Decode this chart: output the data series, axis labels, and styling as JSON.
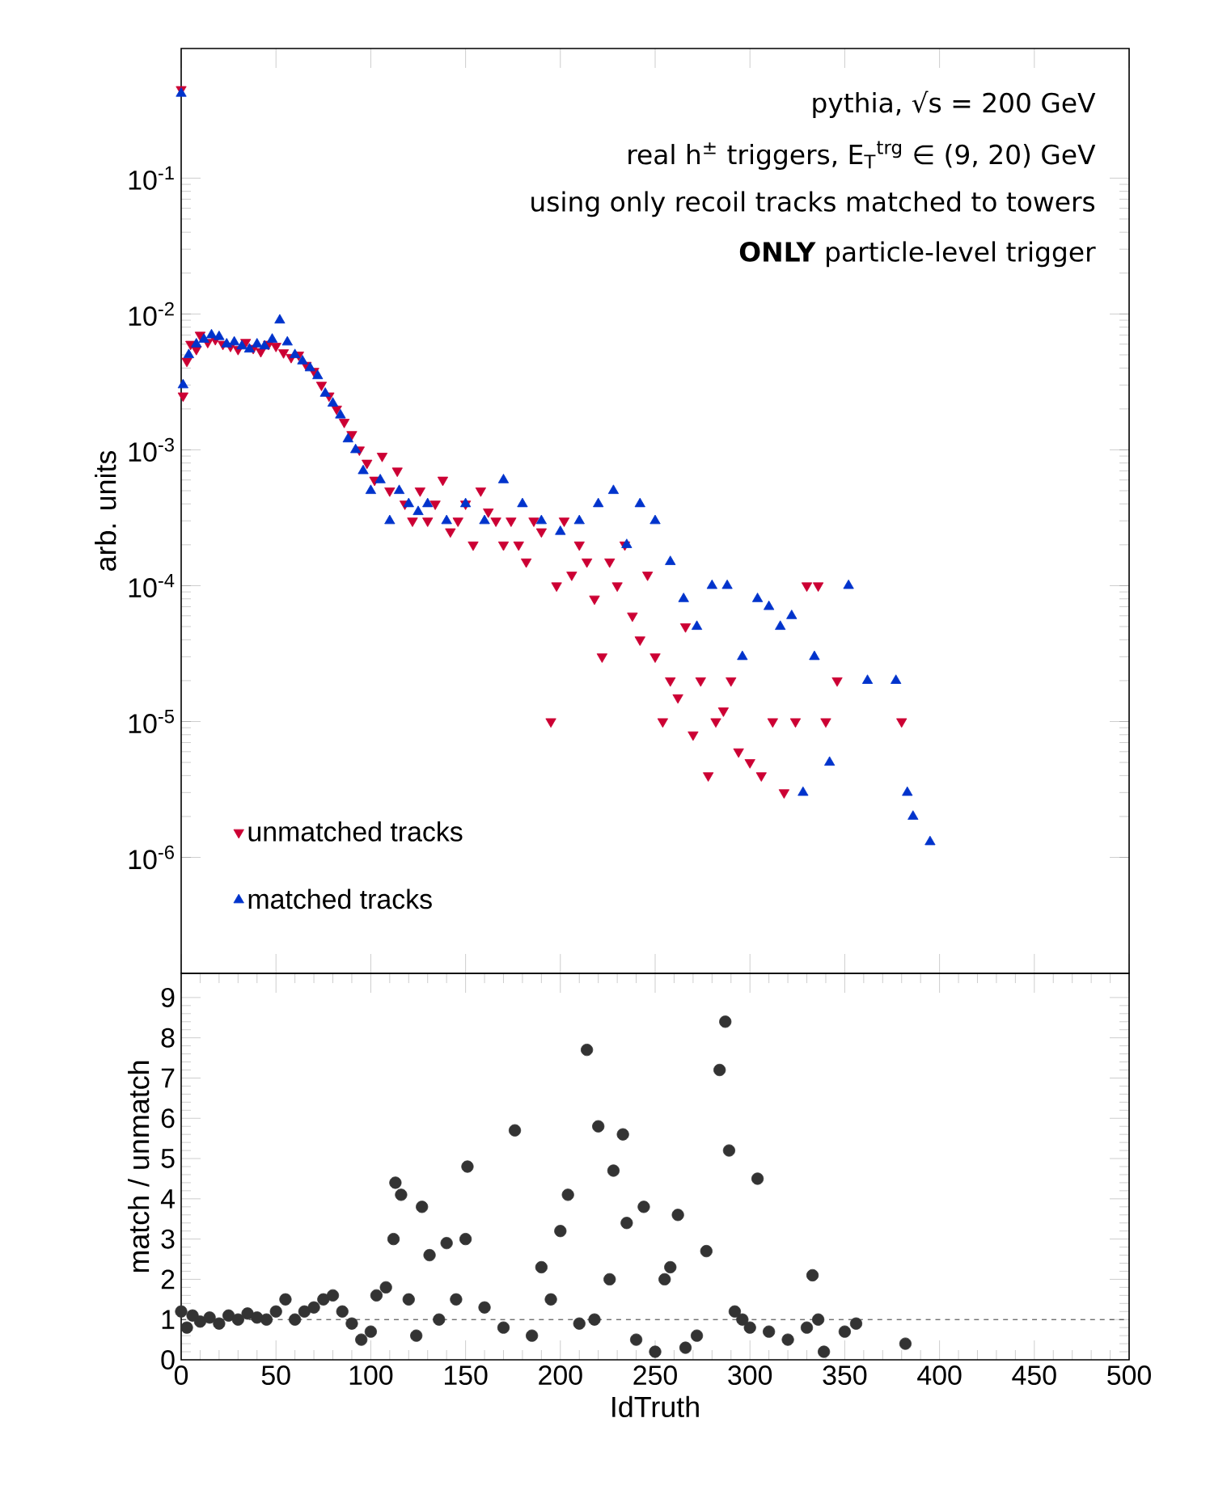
{
  "chart_data": [
    {
      "type": "scatter",
      "ylabel": "arb. units",
      "log": "y",
      "xlim": [
        0,
        500
      ],
      "xticks": [
        0,
        50,
        100,
        150,
        200,
        250,
        300,
        350,
        400,
        450,
        500
      ],
      "ylim": [
        1.4e-07,
        0.9
      ],
      "yticks": [
        {
          "value": 1e-06,
          "label": "10$^{-6}$"
        },
        {
          "value": 1e-05,
          "label": "10$^{-5}$"
        },
        {
          "value": 0.0001,
          "label": "10$^{-4}$"
        },
        {
          "value": 0.001,
          "label": "10$^{-3}$"
        },
        {
          "value": 0.01,
          "label": "10$^{-2}$"
        },
        {
          "value": 0.1,
          "label": "10$^{-1}$"
        }
      ],
      "tick_labels": "y",
      "legend": "bottom left",
      "annotations": [
        "pythia, √s = 200 GeV",
        "real h$^{±}$ triggers, E$_{T}$$^{trg}$ ∈ (9, 20) GeV",
        "using only recoil tracks matched to towers",
        "**ONLY** particle-level trigger"
      ],
      "series": [
        {
          "name": "unmatched tracks",
          "color": "#cc0033",
          "marker": "triangle_down",
          "x": [
            0,
            1,
            3,
            5,
            8,
            10,
            14,
            18,
            22,
            26,
            30,
            34,
            38,
            42,
            46,
            50,
            54,
            58,
            62,
            66,
            70,
            74,
            78,
            82,
            86,
            90,
            94,
            98,
            102,
            106,
            110,
            114,
            118,
            122,
            126,
            130,
            134,
            138,
            142,
            146,
            150,
            154,
            158,
            162,
            166,
            170,
            174,
            178,
            182,
            186,
            190,
            195,
            198,
            202,
            206,
            210,
            214,
            218,
            222,
            226,
            230,
            234,
            238,
            242,
            246,
            250,
            254,
            258,
            262,
            266,
            270,
            274,
            278,
            282,
            286,
            290,
            294,
            300,
            306,
            312,
            318,
            324,
            330,
            336,
            340,
            346,
            380
          ],
          "values": [
            0.45,
            0.0025,
            0.0045,
            0.006,
            0.0055,
            0.007,
            0.0062,
            0.0065,
            0.006,
            0.0058,
            0.0055,
            0.0062,
            0.0056,
            0.0053,
            0.006,
            0.0058,
            0.0052,
            0.0048,
            0.005,
            0.0042,
            0.0038,
            0.003,
            0.0025,
            0.002,
            0.0016,
            0.0013,
            0.001,
            0.0008,
            0.0006,
            0.0009,
            0.0005,
            0.0007,
            0.0004,
            0.0003,
            0.0005,
            0.0003,
            0.0004,
            0.0006,
            0.00025,
            0.0003,
            0.0004,
            0.0002,
            0.0005,
            0.00035,
            0.0003,
            0.0002,
            0.0003,
            0.0002,
            0.00015,
            0.0003,
            0.00025,
            1e-05,
            0.0001,
            0.0003,
            0.00012,
            0.0002,
            0.00015,
            8e-05,
            3e-05,
            0.00015,
            0.0001,
            0.0002,
            6e-05,
            4e-05,
            0.00012,
            3e-05,
            1e-05,
            2e-05,
            1.5e-05,
            5e-05,
            8e-06,
            2e-05,
            4e-06,
            1e-05,
            1.2e-05,
            2e-05,
            6e-06,
            5e-06,
            4e-06,
            1e-05,
            3e-06,
            1e-05,
            0.0001,
            0.0001,
            1e-05,
            2e-05,
            1e-05
          ]
        },
        {
          "name": "matched tracks",
          "color": "#0033cc",
          "marker": "triangle",
          "x": [
            0,
            1,
            4,
            8,
            12,
            16,
            20,
            24,
            28,
            32,
            36,
            40,
            44,
            48,
            52,
            56,
            60,
            64,
            68,
            72,
            76,
            80,
            84,
            88,
            92,
            96,
            100,
            105,
            110,
            115,
            120,
            125,
            130,
            140,
            150,
            160,
            170,
            180,
            190,
            200,
            210,
            220,
            228,
            235,
            242,
            250,
            258,
            265,
            272,
            280,
            288,
            296,
            304,
            310,
            316,
            322,
            328,
            334,
            342,
            352,
            362,
            377,
            383,
            386,
            395
          ],
          "values": [
            0.42,
            0.003,
            0.005,
            0.006,
            0.0065,
            0.007,
            0.0068,
            0.006,
            0.0062,
            0.0058,
            0.0055,
            0.006,
            0.0058,
            0.0065,
            0.009,
            0.0062,
            0.005,
            0.0045,
            0.004,
            0.0035,
            0.0026,
            0.0022,
            0.0018,
            0.0012,
            0.001,
            0.0007,
            0.0005,
            0.0006,
            0.0003,
            0.0005,
            0.0004,
            0.00035,
            0.0004,
            0.0003,
            0.0004,
            0.0003,
            0.0006,
            0.0004,
            0.0003,
            0.00025,
            0.0003,
            0.0004,
            0.0005,
            0.0002,
            0.0004,
            0.0003,
            0.00015,
            8e-05,
            5e-05,
            0.0001,
            0.0001,
            3e-05,
            8e-05,
            7e-05,
            5e-05,
            6e-05,
            3e-06,
            3e-05,
            5e-06,
            0.0001,
            2e-05,
            2e-05,
            3e-06,
            2e-06,
            1.3e-06
          ]
        }
      ]
    },
    {
      "type": "scatter",
      "xlabel": "IdTruth",
      "ylabel": "match / unmatch",
      "xlim": [
        0,
        500
      ],
      "xticks": [
        0,
        50,
        100,
        150,
        200,
        250,
        300,
        350,
        400,
        450,
        500
      ],
      "ylim": [
        0,
        9.6
      ],
      "yticks": [
        0,
        1,
        2,
        3,
        4,
        5,
        6,
        7,
        8,
        9
      ],
      "ref_lines": [
        {
          "axis": "y",
          "value": 1,
          "line_style": "dashed",
          "color": "#000000"
        }
      ],
      "series": [
        {
          "color": "#333333",
          "marker": "circle",
          "x": [
            0,
            3,
            6,
            10,
            15,
            20,
            25,
            30,
            35,
            40,
            45,
            50,
            55,
            60,
            65,
            70,
            75,
            80,
            85,
            90,
            95,
            100,
            103,
            108,
            112,
            113,
            116,
            120,
            124,
            127,
            131,
            136,
            140,
            145,
            150,
            151,
            160,
            170,
            176,
            185,
            190,
            195,
            200,
            204,
            210,
            214,
            218,
            220,
            226,
            228,
            233,
            235,
            240,
            244,
            250,
            255,
            258,
            262,
            266,
            272,
            277,
            284,
            287,
            289,
            292,
            296,
            300,
            304,
            310,
            320,
            330,
            333,
            336,
            339,
            350,
            356,
            382
          ],
          "values": [
            1.2,
            0.8,
            1.1,
            0.95,
            1.05,
            0.9,
            1.1,
            1.0,
            1.15,
            1.05,
            1.0,
            1.2,
            1.5,
            1.0,
            1.2,
            1.3,
            1.5,
            1.6,
            1.2,
            0.9,
            0.5,
            0.7,
            1.6,
            1.8,
            3.0,
            4.4,
            4.1,
            1.5,
            0.6,
            3.8,
            2.6,
            1.0,
            2.9,
            1.5,
            3.0,
            4.8,
            1.3,
            0.8,
            5.7,
            0.6,
            2.3,
            1.5,
            3.2,
            4.1,
            0.9,
            7.7,
            1.0,
            5.8,
            2.0,
            4.7,
            5.6,
            3.4,
            0.5,
            3.8,
            0.2,
            2.0,
            2.3,
            3.6,
            0.3,
            0.6,
            2.7,
            7.2,
            8.4,
            5.2,
            1.2,
            1.0,
            0.8,
            4.5,
            0.7,
            0.5,
            0.8,
            2.1,
            1.0,
            0.2,
            0.7,
            0.9,
            0.4
          ]
        }
      ]
    }
  ]
}
